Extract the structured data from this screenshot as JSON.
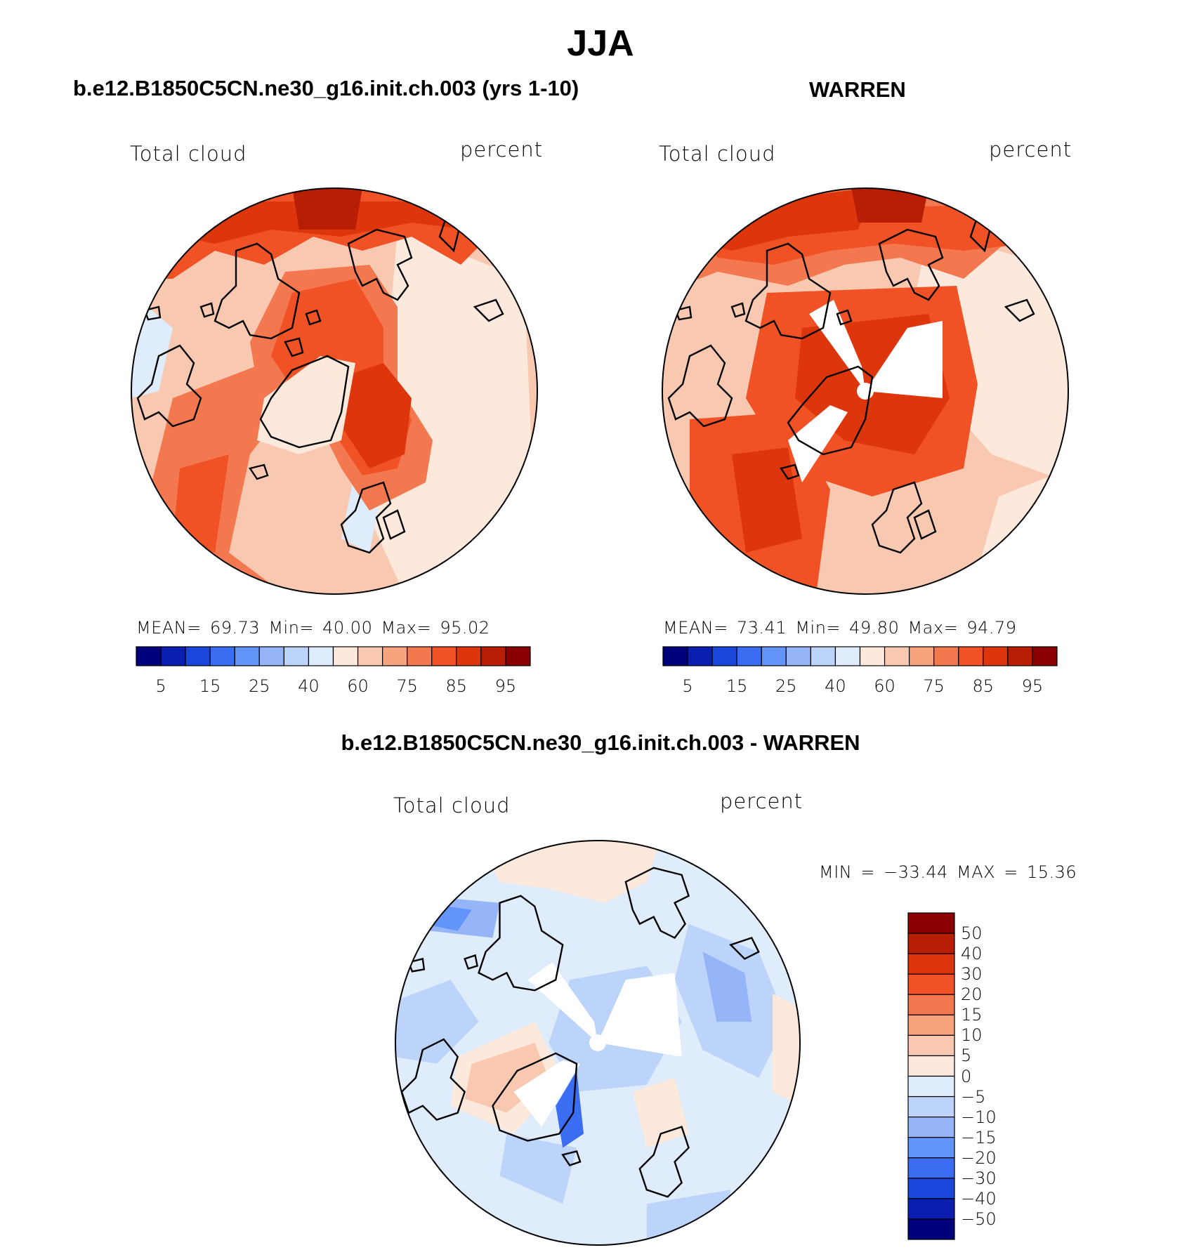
{
  "figure": {
    "title": "JJA"
  },
  "panels": [
    {
      "title": "b.e12.B1850C5CN.ne30_g16.init.ch.003 (yrs 1-10)",
      "variable": "Total cloud",
      "units": "percent",
      "stats": "MEAN=   69.73   Min=    40.00   Max=    95.02",
      "colorbar_labels": [
        "5",
        "15",
        "25",
        "40",
        "60",
        "75",
        "85",
        "95"
      ],
      "colorbar_colors": [
        "#00007d",
        "#0a1faf",
        "#1b47dd",
        "#3a6df2",
        "#6394f7",
        "#95b5f8",
        "#bcd3fa",
        "#deecfb",
        "#fde9dc",
        "#f9c8b0",
        "#f6a37e",
        "#f4784f",
        "#f05125",
        "#dd360c",
        "#b81e04",
        "#8a0000"
      ]
    },
    {
      "title": "WARREN",
      "variable": "Total cloud",
      "units": "percent",
      "stats": "MEAN=   73.41   Min=    49.80   Max=    94.79",
      "colorbar_labels": [
        "5",
        "15",
        "25",
        "40",
        "60",
        "75",
        "85",
        "95"
      ],
      "colorbar_colors": [
        "#00007d",
        "#0a1faf",
        "#1b47dd",
        "#3a6df2",
        "#6394f7",
        "#95b5f8",
        "#bcd3fa",
        "#deecfb",
        "#fde9dc",
        "#f9c8b0",
        "#f6a37e",
        "#f4784f",
        "#f05125",
        "#dd360c",
        "#b81e04",
        "#8a0000"
      ]
    },
    {
      "title": "b.e12.B1850C5CN.ne30_g16.init.ch.003 - WARREN",
      "variable": "Total cloud",
      "units": "percent",
      "stats": "MIN = −33.44  MAX =    15.36",
      "colorbar_labels": [
        "50",
        "40",
        "30",
        "20",
        "15",
        "10",
        "5",
        "0",
        "−5",
        "−10",
        "−15",
        "−20",
        "−30",
        "−40",
        "−50"
      ],
      "colorbar_colors": [
        "#8a0000",
        "#b81e04",
        "#dd360c",
        "#f05125",
        "#f4784f",
        "#f6a37e",
        "#f9c8b0",
        "#fde9dc",
        "#deecfb",
        "#bcd3fa",
        "#95b5f8",
        "#6394f7",
        "#3a6df2",
        "#1b47dd",
        "#0a1faf",
        "#00007d"
      ]
    }
  ]
}
